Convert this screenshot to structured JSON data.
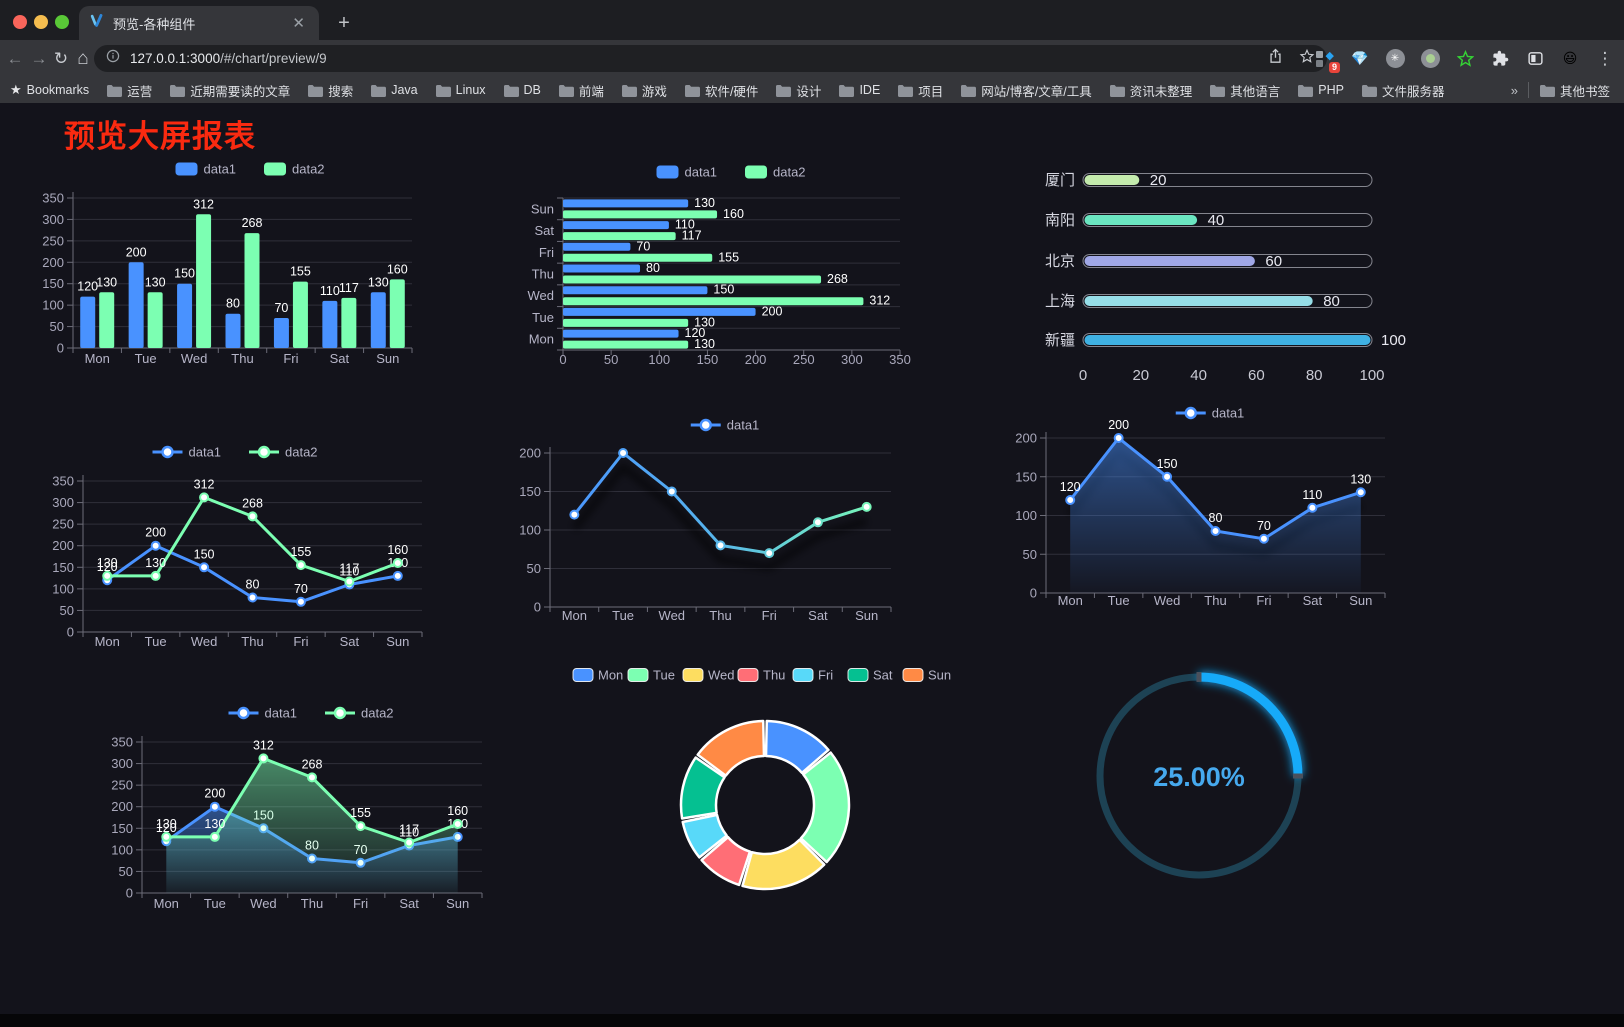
{
  "browser": {
    "tab_title": "预览-各种组件",
    "close_tab": "✕",
    "new_tab": "+",
    "url_host": "127.0.0.1:3000",
    "url_path": "/#/chart/preview/9",
    "bookmarks_label": "Bookmarks",
    "bookmarks": [
      "运营",
      "近期需要读的文章",
      "搜索",
      "Java",
      "Linux",
      "DB",
      "前端",
      "游戏",
      "软件/硬件",
      "设计",
      "IDE",
      "项目",
      "网站/博客/文章/工具",
      "资讯未整理",
      "其他语言",
      "PHP",
      "文件服务器"
    ],
    "overflow_chevron": "»",
    "other_bookmarks": "其他书签",
    "extension_badge": "9",
    "menu_icon": "⋮"
  },
  "page": {
    "title": "预览大屏报表",
    "title_color": "#fa2a10"
  },
  "chart_data": [
    {
      "id": "bar-grouped",
      "type": "bar",
      "categories": [
        "Mon",
        "Tue",
        "Wed",
        "Thu",
        "Fri",
        "Sat",
        "Sun"
      ],
      "series": [
        {
          "name": "data1",
          "color": "#4992ff",
          "values": [
            120,
            200,
            150,
            80,
            70,
            110,
            130
          ]
        },
        {
          "name": "data2",
          "color": "#7cffb2",
          "values": [
            130,
            130,
            312,
            268,
            155,
            117,
            160
          ]
        }
      ],
      "ylim": [
        0,
        350
      ],
      "yticks": [
        0,
        50,
        100,
        150,
        200,
        250,
        300,
        350
      ],
      "legend_position": "top",
      "grid": true,
      "labels": true
    },
    {
      "id": "bar-horizontal",
      "type": "bar-horizontal",
      "categories": [
        "Mon",
        "Tue",
        "Wed",
        "Thu",
        "Fri",
        "Sat",
        "Sun"
      ],
      "series": [
        {
          "name": "data1",
          "color": "#4992ff",
          "values": [
            120,
            200,
            150,
            80,
            70,
            110,
            130
          ]
        },
        {
          "name": "data2",
          "color": "#7cffb2",
          "values": [
            130,
            130,
            312,
            268,
            155,
            117,
            160
          ]
        }
      ],
      "xlim": [
        0,
        350
      ],
      "xticks": [
        0,
        50,
        100,
        150,
        200,
        250,
        300,
        350
      ],
      "legend_position": "top",
      "grid": true,
      "labels": true
    },
    {
      "id": "progress",
      "type": "progress",
      "rows": [
        {
          "label": "厦门",
          "value": 20,
          "color": "#c4ebad"
        },
        {
          "label": "南阳",
          "value": 40,
          "color": "#6be6c1"
        },
        {
          "label": "北京",
          "value": 60,
          "color": "#a0a7e6"
        },
        {
          "label": "上海",
          "value": 80,
          "color": "#96dee8"
        },
        {
          "label": "新疆",
          "value": 100,
          "color": "#3fb1e3"
        }
      ],
      "xlim": [
        0,
        100
      ],
      "xticks": [
        0,
        20,
        40,
        60,
        80,
        100
      ]
    },
    {
      "id": "line-two",
      "type": "line",
      "categories": [
        "Mon",
        "Tue",
        "Wed",
        "Thu",
        "Fri",
        "Sat",
        "Sun"
      ],
      "series": [
        {
          "name": "data1",
          "color": "#4992ff",
          "values": [
            120,
            200,
            150,
            80,
            70,
            110,
            130
          ]
        },
        {
          "name": "data2",
          "color": "#7cffb2",
          "values": [
            130,
            130,
            312,
            268,
            155,
            117,
            160
          ]
        }
      ],
      "ylim": [
        0,
        350
      ],
      "yticks": [
        0,
        50,
        100,
        150,
        200,
        250,
        300,
        350
      ],
      "legend_position": "top",
      "labels": true
    },
    {
      "id": "line-gradient",
      "type": "line",
      "categories": [
        "Mon",
        "Tue",
        "Wed",
        "Thu",
        "Fri",
        "Sat",
        "Sun"
      ],
      "series": [
        {
          "name": "data1",
          "color": "#4992ff",
          "gradient": [
            "#4992ff",
            "#7cffb2"
          ],
          "values": [
            120,
            200,
            150,
            80,
            70,
            110,
            130
          ]
        }
      ],
      "ylim": [
        0,
        200
      ],
      "yticks": [
        0,
        50,
        100,
        150,
        200
      ],
      "legend_position": "top",
      "labels": false,
      "shadow": true
    },
    {
      "id": "line-area",
      "type": "line",
      "categories": [
        "Mon",
        "Tue",
        "Wed",
        "Thu",
        "Fri",
        "Sat",
        "Sun"
      ],
      "series": [
        {
          "name": "data1",
          "color": "#4992ff",
          "area": true,
          "values": [
            120,
            200,
            150,
            80,
            70,
            110,
            130
          ]
        }
      ],
      "ylim": [
        0,
        200
      ],
      "yticks": [
        0,
        50,
        100,
        150,
        200
      ],
      "legend_position": "top",
      "labels": true,
      "shadow": true
    },
    {
      "id": "line-two-area",
      "type": "line",
      "categories": [
        "Mon",
        "Tue",
        "Wed",
        "Thu",
        "Fri",
        "Sat",
        "Sun"
      ],
      "series": [
        {
          "name": "data1",
          "color": "#4992ff",
          "area": true,
          "values": [
            120,
            200,
            150,
            80,
            70,
            110,
            130
          ]
        },
        {
          "name": "data2",
          "color": "#7cffb2",
          "area": true,
          "values": [
            130,
            130,
            312,
            268,
            155,
            117,
            160
          ]
        }
      ],
      "ylim": [
        0,
        350
      ],
      "yticks": [
        0,
        50,
        100,
        150,
        200,
        250,
        300,
        350
      ],
      "legend_position": "top",
      "labels": true
    },
    {
      "id": "donut",
      "type": "pie",
      "legend_position": "top",
      "items": [
        {
          "label": "Mon",
          "value": 120,
          "color": "#4992ff"
        },
        {
          "label": "Tue",
          "value": 200,
          "color": "#7cffb2"
        },
        {
          "label": "Wed",
          "value": 150,
          "color": "#fddd60"
        },
        {
          "label": "Thu",
          "value": 80,
          "color": "#ff6e76"
        },
        {
          "label": "Fri",
          "value": 70,
          "color": "#58d9f9"
        },
        {
          "label": "Sat",
          "value": 110,
          "color": "#05c091"
        },
        {
          "label": "Sun",
          "value": 130,
          "color": "#ff8a45"
        }
      ]
    },
    {
      "id": "gauge",
      "type": "gauge",
      "value": 25,
      "display": "25.00%",
      "color": "#18aaf9",
      "track_color": "#1d4254",
      "text_color": "#46a9ee"
    }
  ]
}
